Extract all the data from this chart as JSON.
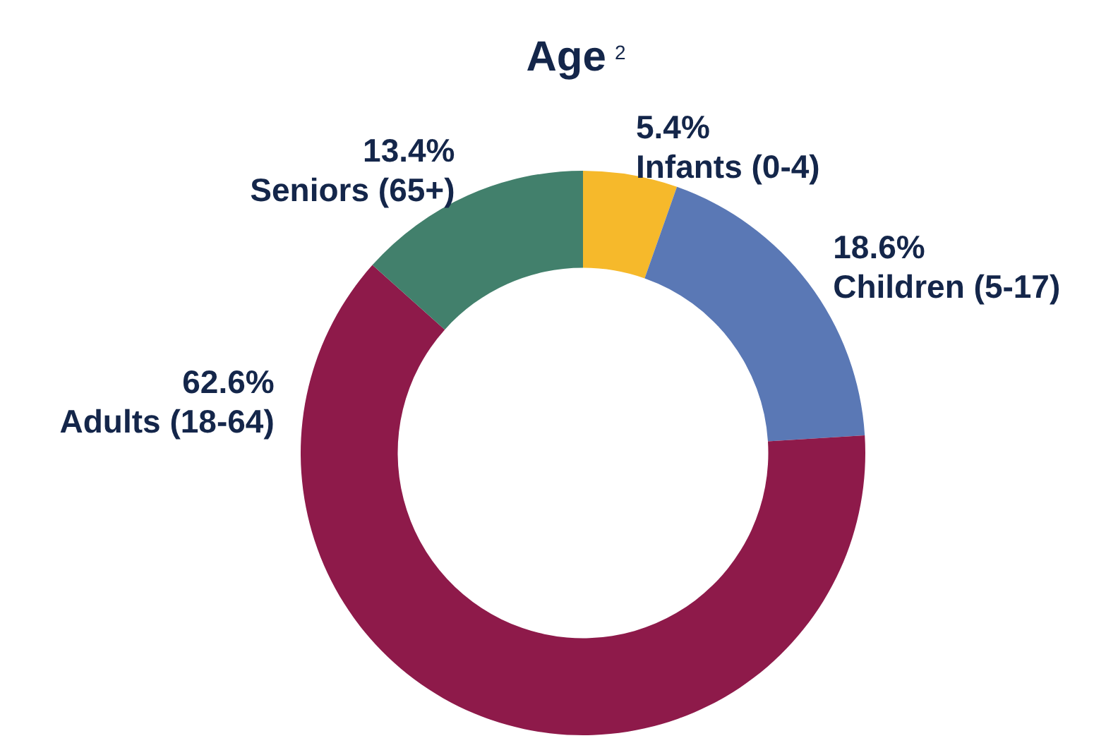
{
  "chart_data": {
    "type": "donut",
    "title": "Age$^{2}$",
    "categories": [
      "Infants (0-4)",
      "Children (5-17)",
      "Adults (18-64)",
      "Seniors (65+)"
    ],
    "values": [
      5.4,
      18.6,
      62.6,
      13.4
    ],
    "value_labels": [
      "5.4%",
      "18.6%",
      "62.6%",
      "13.4%"
    ],
    "colors": [
      "#f6b92b",
      "#5a78b5",
      "#8e1a4a",
      "#42806c"
    ],
    "legend": false
  }
}
